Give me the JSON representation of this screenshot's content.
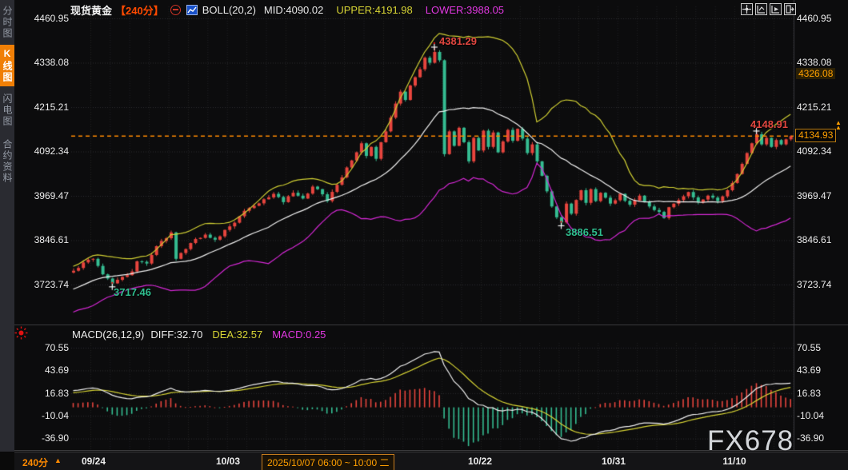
{
  "window": {
    "watermark": "FX678"
  },
  "topbar": {
    "symbol": "现货黄金",
    "period": "【240分】",
    "indicator_title": "BOLL(20,2)",
    "mid": "MID:4090.02",
    "upper": "UPPER:4191.98",
    "lower": "LOWER:3988.05"
  },
  "toolbar": {
    "icons": [
      "pan-crosshair",
      "zoom-range",
      "zoom-play",
      "exit-expand"
    ]
  },
  "sidebar": {
    "items": [
      {
        "label": "分时图",
        "active": false
      },
      {
        "label": "K线图",
        "active": true
      },
      {
        "label": "闪电图",
        "active": false
      },
      {
        "label": "合约资料",
        "active": false
      }
    ]
  },
  "axis_left": [
    "4460.95",
    "4338.08",
    "4215.21",
    "4092.34",
    "3969.47",
    "3846.61",
    "3723.74"
  ],
  "axis_right": [
    "4460.95",
    "4338.08",
    "4215.21",
    "4092.34",
    "3969.47",
    "3846.61",
    "3723.74"
  ],
  "price_tags": {
    "session_high": "4326.08",
    "last": "4134.93"
  },
  "annotations": {
    "peak": "4381.29",
    "low_start": "3717.46",
    "low_mid": "3886.51",
    "recent_high": "4148.91"
  },
  "macd_bar": {
    "title": "MACD(26,12,9)",
    "diff": "DIFF:32.70",
    "dea": "DEA:32.57",
    "macd": "MACD:0.25"
  },
  "macd_axis": [
    "70.55",
    "43.69",
    "16.83",
    "-10.04",
    "-36.90"
  ],
  "bottom": {
    "period": "240分",
    "dates": [
      "09/24",
      "10/03",
      "10/22",
      "10/31",
      "11/10"
    ],
    "range": "2025/10/07 06:00 ~ 10:00 二"
  },
  "colors": {
    "up": "#e8453e",
    "down": "#35bd92",
    "boll_upper": "#d0cf33",
    "boll_mid": "#f0f0f0",
    "boll_lower": "#d428d4",
    "diff_line": "#f0f0f0",
    "dea_line": "#d6d334",
    "accent": "#ff8a00",
    "grid": "#2e2e31"
  },
  "chart_data": {
    "type": "candlestick",
    "instrument": "现货黄金 (Spot Gold)",
    "interval": "240min",
    "visible_bars": 148,
    "last_price": 4134.93,
    "session_tag_price": 4326.08,
    "overlay": {
      "name": "BOLL",
      "period": 20,
      "k": 2,
      "mid": 4090.02,
      "upper": 4191.98,
      "lower": 3988.05
    },
    "sub_indicator": {
      "name": "MACD",
      "params": [
        26,
        12,
        9
      ],
      "diff": 32.7,
      "dea": 32.57,
      "macd": 0.25
    },
    "price_axis": {
      "ticks": [
        4460.95,
        4338.08,
        4215.21,
        4092.34,
        3969.47,
        3846.61,
        3723.74
      ],
      "tick_step": 122.87
    },
    "macd_axis_ticks": [
      70.55,
      43.69,
      16.83,
      -10.04,
      -36.9
    ],
    "x_dates": [
      {
        "label": "09/24",
        "bar": 5
      },
      {
        "label": "10/03",
        "bar": 32
      },
      {
        "label": "10/22",
        "bar": 83
      },
      {
        "label": "10/31",
        "bar": 111
      },
      {
        "label": "11/10",
        "bar": 136
      }
    ],
    "landmarks": [
      {
        "bar": 8,
        "type": "low",
        "price": 3717.46
      },
      {
        "bar": 74,
        "type": "high",
        "price": 4381.29
      },
      {
        "bar": 100,
        "type": "low",
        "price": 3886.51
      },
      {
        "bar": 140,
        "type": "high",
        "price": 4148.91
      }
    ],
    "close_anchors": [
      [
        0,
        3762
      ],
      [
        2,
        3785
      ],
      [
        4,
        3795
      ],
      [
        6,
        3752
      ],
      [
        8,
        3727
      ],
      [
        10,
        3745
      ],
      [
        12,
        3760
      ],
      [
        13,
        3788
      ],
      [
        15,
        3782
      ],
      [
        17,
        3830
      ],
      [
        19,
        3852
      ],
      [
        20,
        3868
      ],
      [
        21,
        3795
      ],
      [
        23,
        3822
      ],
      [
        25,
        3850
      ],
      [
        27,
        3862
      ],
      [
        29,
        3848
      ],
      [
        31,
        3875
      ],
      [
        33,
        3895
      ],
      [
        35,
        3928
      ],
      [
        37,
        3942
      ],
      [
        39,
        3960
      ],
      [
        41,
        3975
      ],
      [
        43,
        3952
      ],
      [
        45,
        3978
      ],
      [
        47,
        3962
      ],
      [
        49,
        3995
      ],
      [
        50,
        3988
      ],
      [
        52,
        3955
      ],
      [
        54,
        4000
      ],
      [
        56,
        4048
      ],
      [
        58,
        4090
      ],
      [
        59,
        4115
      ],
      [
        60,
        4080
      ],
      [
        61,
        4105
      ],
      [
        62,
        4072
      ],
      [
        63,
        4118
      ],
      [
        64,
        4148
      ],
      [
        65,
        4186
      ],
      [
        66,
        4225
      ],
      [
        67,
        4258
      ],
      [
        68,
        4235
      ],
      [
        69,
        4275
      ],
      [
        70,
        4298
      ],
      [
        71,
        4320
      ],
      [
        72,
        4352
      ],
      [
        73,
        4338
      ],
      [
        74,
        4368
      ],
      [
        75,
        4345
      ],
      [
        76,
        4085
      ],
      [
        77,
        4148
      ],
      [
        78,
        4108
      ],
      [
        79,
        4158
      ],
      [
        80,
        4118
      ],
      [
        81,
        4065
      ],
      [
        82,
        4130
      ],
      [
        83,
        4095
      ],
      [
        84,
        4150
      ],
      [
        85,
        4105
      ],
      [
        86,
        4145
      ],
      [
        87,
        4090
      ],
      [
        88,
        4120
      ],
      [
        89,
        4152
      ],
      [
        90,
        4122
      ],
      [
        91,
        4155
      ],
      [
        92,
        4128
      ],
      [
        93,
        4088
      ],
      [
        94,
        4112
      ],
      [
        95,
        4065
      ],
      [
        96,
        4025
      ],
      [
        97,
        3982
      ],
      [
        98,
        3940
      ],
      [
        99,
        3910
      ],
      [
        100,
        3896
      ],
      [
        101,
        3948
      ],
      [
        102,
        3920
      ],
      [
        103,
        3958
      ],
      [
        104,
        3985
      ],
      [
        105,
        3950
      ],
      [
        106,
        3988
      ],
      [
        107,
        3955
      ],
      [
        108,
        3978
      ],
      [
        110,
        3948
      ],
      [
        112,
        3975
      ],
      [
        114,
        3945
      ],
      [
        116,
        3970
      ],
      [
        118,
        3940
      ],
      [
        120,
        3925
      ],
      [
        121,
        3908
      ],
      [
        122,
        3938
      ],
      [
        124,
        3958
      ],
      [
        126,
        3980
      ],
      [
        128,
        3952
      ],
      [
        130,
        3970
      ],
      [
        132,
        3955
      ],
      [
        133,
        3968
      ],
      [
        134,
        3985
      ],
      [
        135,
        4005
      ],
      [
        136,
        4030
      ],
      [
        137,
        4058
      ],
      [
        138,
        4088
      ],
      [
        139,
        4115
      ],
      [
        140,
        4140
      ],
      [
        141,
        4112
      ],
      [
        142,
        4130
      ],
      [
        143,
        4105
      ],
      [
        144,
        4124
      ],
      [
        145,
        4112
      ],
      [
        146,
        4126
      ],
      [
        147,
        4134.93
      ]
    ]
  }
}
